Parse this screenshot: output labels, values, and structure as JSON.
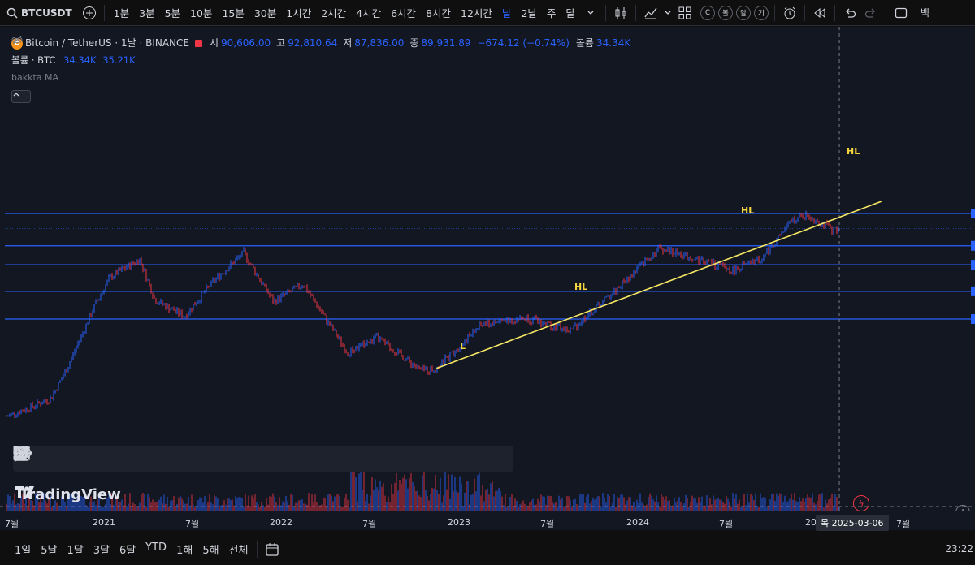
{
  "topbar": {
    "symbol": "BTCUSDT",
    "intervals": [
      "1분",
      "3분",
      "5분",
      "10분",
      "15분",
      "30분",
      "1시간",
      "2시간",
      "4시간",
      "6시간",
      "8시간",
      "12시간",
      "날",
      "2날",
      "주",
      "달"
    ],
    "active_interval": "날",
    "chart_style_letters": [
      "C",
      "볼",
      "알",
      "기"
    ],
    "right_cut_text": "백"
  },
  "legend": {
    "title": "Bitcoin / TetherUS · 1날 · BINANCE",
    "open_label": "시",
    "open": "90,606.00",
    "high_label": "고",
    "high": "92,810.64",
    "low_label": "저",
    "low": "87,836.00",
    "close_label": "종",
    "close": "89,931.89",
    "change": "−674.12 (−0.74%)",
    "volume_label": "볼륨",
    "volume": "34.34K",
    "volume_row_label": "볼륨 · BTC",
    "volume_row_v1": "34.34K",
    "volume_row_v2": "35.21K",
    "indicator": "bakkta MA"
  },
  "annotations": {
    "low_label": "L",
    "hl_labels": [
      "HL",
      "HL",
      "HL"
    ]
  },
  "watermark": "TradingView",
  "time_axis": {
    "labels": [
      "7월",
      "2021",
      "7월",
      "2022",
      "7월",
      "2023",
      "7월",
      "2024",
      "7월",
      "20",
      "7월"
    ],
    "crosshair_date": "목  2025-03-06"
  },
  "bottombar": {
    "ranges": [
      "1일",
      "5날",
      "1달",
      "3달",
      "6달",
      "YTD",
      "1해",
      "5해",
      "전체"
    ],
    "clock": "23:22"
  },
  "colors": {
    "background": "#131722",
    "accent": "#2962ff",
    "level_line": "#2962ff",
    "trend_line": "#f5e663",
    "candle_up": "#2962ff",
    "candle_down": "#f23645",
    "annotation": "#f5d63d"
  },
  "chart_data": {
    "type": "candlestick",
    "symbol": "BTCUSDT",
    "interval": "1D",
    "x_range": [
      "2020-07",
      "2025-06"
    ],
    "points": [
      {
        "t": "2020-07",
        "price": 9200
      },
      {
        "t": "2020-09",
        "price": 10600
      },
      {
        "t": "2020-10",
        "price": 11500
      },
      {
        "t": "2020-11",
        "price": 16000
      },
      {
        "t": "2020-12",
        "price": 24000
      },
      {
        "t": "2021-01",
        "price": 36000
      },
      {
        "t": "2021-02",
        "price": 50000
      },
      {
        "t": "2021-04",
        "price": 62000
      },
      {
        "t": "2021-05",
        "price": 38000
      },
      {
        "t": "2021-07",
        "price": 31000
      },
      {
        "t": "2021-09",
        "price": 48000
      },
      {
        "t": "2021-11",
        "price": 67000
      },
      {
        "t": "2022-01",
        "price": 37000
      },
      {
        "t": "2022-03",
        "price": 46000
      },
      {
        "t": "2022-06",
        "price": 20000
      },
      {
        "t": "2022-08",
        "price": 24000
      },
      {
        "t": "2022-11",
        "price": 16000
      },
      {
        "t": "2022-12",
        "price": 16500
      },
      {
        "t": "2023-03",
        "price": 28000
      },
      {
        "t": "2023-06",
        "price": 30500
      },
      {
        "t": "2023-09",
        "price": 26000
      },
      {
        "t": "2023-12",
        "price": 42000
      },
      {
        "t": "2024-03",
        "price": 71000
      },
      {
        "t": "2024-06",
        "price": 61000
      },
      {
        "t": "2024-08",
        "price": 54000
      },
      {
        "t": "2024-10",
        "price": 63000
      },
      {
        "t": "2024-12",
        "price": 100000
      },
      {
        "t": "2025-01",
        "price": 106000
      },
      {
        "t": "2025-03",
        "price": 86000
      },
      {
        "t": "2025-03-06",
        "price": 89931.89
      }
    ],
    "horizontal_levels": [
      108000,
      73000,
      58000,
      42000,
      30000
    ],
    "trendline": {
      "from": {
        "t": "2022-12",
        "price": 16500
      },
      "to": {
        "t": "2025-06",
        "price": 125000
      }
    },
    "labels": [
      {
        "text": "L",
        "t": "2022-12"
      },
      {
        "text": "HL",
        "t": "2023-09"
      },
      {
        "text": "HL",
        "t": "2024-08"
      },
      {
        "text": "HL",
        "t": "2025-03"
      }
    ]
  }
}
